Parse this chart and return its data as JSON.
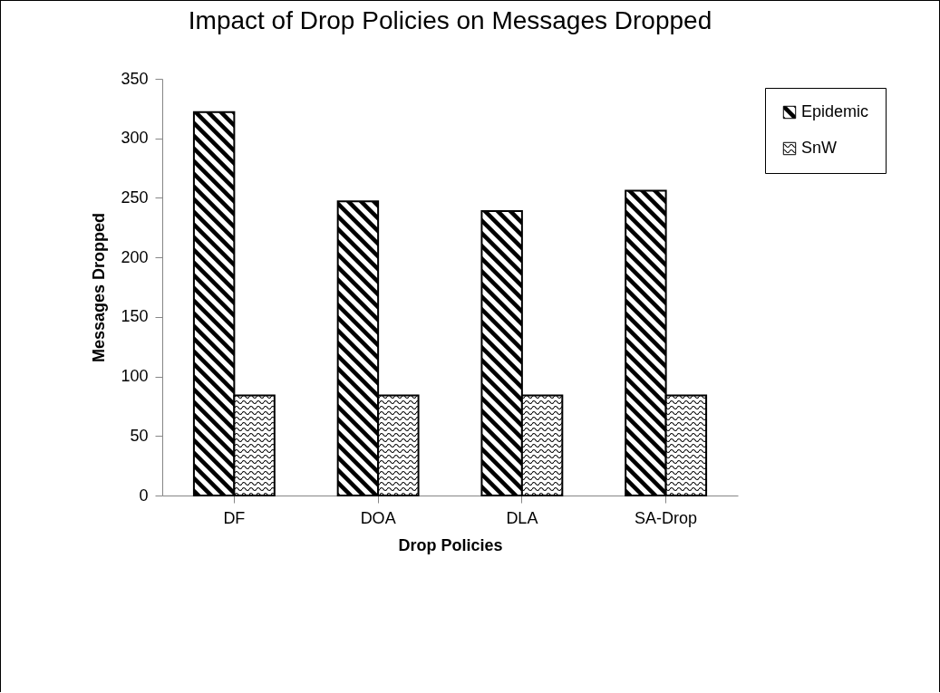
{
  "chart_data": {
    "type": "bar",
    "title": "Impact of Drop Policies on Messages Dropped",
    "xlabel": "Drop Policies",
    "ylabel": "Messages Dropped",
    "categories": [
      "DF",
      "DOA",
      "DLA",
      "SA-Drop"
    ],
    "series": [
      {
        "name": "Epidemic",
        "color": "#000000",
        "values": [
          322,
          247,
          239,
          256
        ]
      },
      {
        "name": "SnW",
        "color": "#000000",
        "values": [
          84,
          84,
          84,
          84
        ]
      }
    ],
    "ylim": [
      0,
      350
    ],
    "yticks": [
      0,
      50,
      100,
      150,
      200,
      250,
      300,
      350
    ],
    "grid": false,
    "legend": "top right"
  }
}
